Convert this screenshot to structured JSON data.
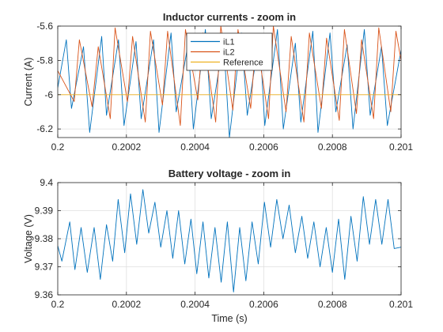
{
  "chart_data": [
    {
      "type": "line",
      "title": "Inductor currents - zoom in",
      "xlabel": "",
      "ylabel": "Current (A)",
      "xlim": [
        0.2,
        0.201
      ],
      "ylim": [
        -6.25,
        -5.6
      ],
      "grid": true,
      "legend_position": "top-right",
      "xtick_values": [
        0.2,
        0.2002,
        0.2004,
        0.2006,
        0.2008,
        0.201
      ],
      "xtick_labels": [
        "0.2",
        "0.2002",
        "0.2004",
        "0.2006",
        "0.2008",
        "0.201"
      ],
      "ytick_values": [
        -6.2,
        -6,
        -5.8,
        -5.6
      ],
      "ytick_labels": [
        "-6.2",
        "-6",
        "-5.8",
        "-5.6"
      ],
      "series": [
        {
          "name": "iL1",
          "color": "#0072bd",
          "x": [
            0.2,
            0.200025,
            0.20004,
            0.200075,
            0.200093,
            0.200128,
            0.200142,
            0.200177,
            0.200193,
            0.200228,
            0.200243,
            0.200279,
            0.200295,
            0.20033,
            0.200345,
            0.20038,
            0.200395,
            0.20043,
            0.200447,
            0.200483,
            0.2005,
            0.200535,
            0.200552,
            0.200588,
            0.200603,
            0.20064,
            0.200657,
            0.200692,
            0.200708,
            0.200743,
            0.200758,
            0.200793,
            0.20081,
            0.200843,
            0.20086,
            0.200893,
            0.20091,
            0.200943,
            0.20096,
            0.201
          ],
          "y": [
            -5.96,
            -5.68,
            -6.08,
            -5.72,
            -6.22,
            -5.66,
            -6.12,
            -5.68,
            -6.18,
            -5.69,
            -6.14,
            -5.68,
            -6.22,
            -5.64,
            -6.1,
            -5.7,
            -6.2,
            -5.62,
            -6.14,
            -5.68,
            -6.25,
            -5.64,
            -6.12,
            -5.66,
            -6.18,
            -5.62,
            -6.2,
            -5.7,
            -6.16,
            -5.63,
            -6.22,
            -5.64,
            -6.1,
            -5.71,
            -6.2,
            -5.62,
            -6.12,
            -5.72,
            -6.18,
            -5.74
          ]
        },
        {
          "name": "iL2",
          "color": "#d95319",
          "x": [
            0.2,
            0.200048,
            0.200063,
            0.2001,
            0.200118,
            0.200153,
            0.200167,
            0.200203,
            0.200218,
            0.200255,
            0.20027,
            0.200305,
            0.20032,
            0.200357,
            0.200372,
            0.200408,
            0.200423,
            0.20046,
            0.200475,
            0.20051,
            0.200525,
            0.200562,
            0.200578,
            0.200614,
            0.200628,
            0.200665,
            0.20068,
            0.200717,
            0.200733,
            0.200768,
            0.200783,
            0.20082,
            0.200835,
            0.20087,
            0.200885,
            0.20092,
            0.200935,
            0.20097,
            0.200985,
            0.201
          ],
          "y": [
            -5.86,
            -6.04,
            -5.68,
            -6.07,
            -5.72,
            -6.14,
            -5.61,
            -6.04,
            -5.66,
            -6.16,
            -5.63,
            -6.06,
            -5.63,
            -6.18,
            -5.62,
            -6.03,
            -5.64,
            -6.16,
            -5.6,
            -6.09,
            -5.62,
            -6.08,
            -5.66,
            -6.14,
            -5.6,
            -6.1,
            -5.66,
            -6.16,
            -5.64,
            -6.08,
            -5.67,
            -6.15,
            -5.62,
            -6.11,
            -5.68,
            -6.14,
            -5.61,
            -6.1,
            -5.63,
            -5.8
          ]
        },
        {
          "name": "Reference",
          "color": "#edb120",
          "x": [
            0.2,
            0.201
          ],
          "y": [
            -6.0,
            -6.0
          ]
        }
      ]
    },
    {
      "type": "line",
      "title": "Battery voltage - zoom in",
      "xlabel": "Time (s)",
      "ylabel": "Voltage (V)",
      "xlim": [
        0.2,
        0.201
      ],
      "ylim": [
        9.36,
        9.4
      ],
      "grid": true,
      "xtick_values": [
        0.2,
        0.2002,
        0.2004,
        0.2006,
        0.2008,
        0.201
      ],
      "xtick_labels": [
        "0.2",
        "0.2002",
        "0.2004",
        "0.2006",
        "0.2008",
        "0.201"
      ],
      "ytick_values": [
        9.36,
        9.37,
        9.38,
        9.39,
        9.4
      ],
      "ytick_labels": [
        "9.36",
        "9.37",
        "9.38",
        "9.39",
        "9.4"
      ],
      "series": [
        {
          "color": "#0072bd",
          "x": [
            0.2,
            0.200012,
            0.200035,
            0.20005,
            0.200068,
            0.200086,
            0.200106,
            0.200124,
            0.200142,
            0.20016,
            0.200176,
            0.200195,
            0.200212,
            0.20023,
            0.200248,
            0.200265,
            0.200283,
            0.2003,
            0.200318,
            0.200335,
            0.200352,
            0.20037,
            0.200388,
            0.200405,
            0.200423,
            0.20044,
            0.200458,
            0.200476,
            0.200494,
            0.200512,
            0.20053,
            0.200548,
            0.200566,
            0.200584,
            0.200602,
            0.20062,
            0.200638,
            0.200656,
            0.200674,
            0.200692,
            0.200711,
            0.200728,
            0.200746,
            0.200764,
            0.200782,
            0.2008,
            0.200818,
            0.200836,
            0.200854,
            0.200872,
            0.20089,
            0.200908,
            0.200926,
            0.200944,
            0.200962,
            0.20098,
            0.201
          ],
          "y": [
            9.3775,
            9.372,
            9.386,
            9.369,
            9.384,
            9.368,
            9.384,
            9.3655,
            9.385,
            9.372,
            9.394,
            9.375,
            9.396,
            9.378,
            9.3975,
            9.382,
            9.393,
            9.377,
            9.39,
            9.373,
            9.39,
            9.371,
            9.387,
            9.3675,
            9.386,
            9.366,
            9.384,
            9.3645,
            9.386,
            9.361,
            9.384,
            9.365,
            9.386,
            9.371,
            9.393,
            9.377,
            9.394,
            9.38,
            9.392,
            9.375,
            9.388,
            9.373,
            9.386,
            9.37,
            9.384,
            9.368,
            9.387,
            9.3655,
            9.388,
            9.372,
            9.395,
            9.378,
            9.394,
            9.378,
            9.394,
            9.3765,
            9.377
          ]
        }
      ]
    }
  ]
}
